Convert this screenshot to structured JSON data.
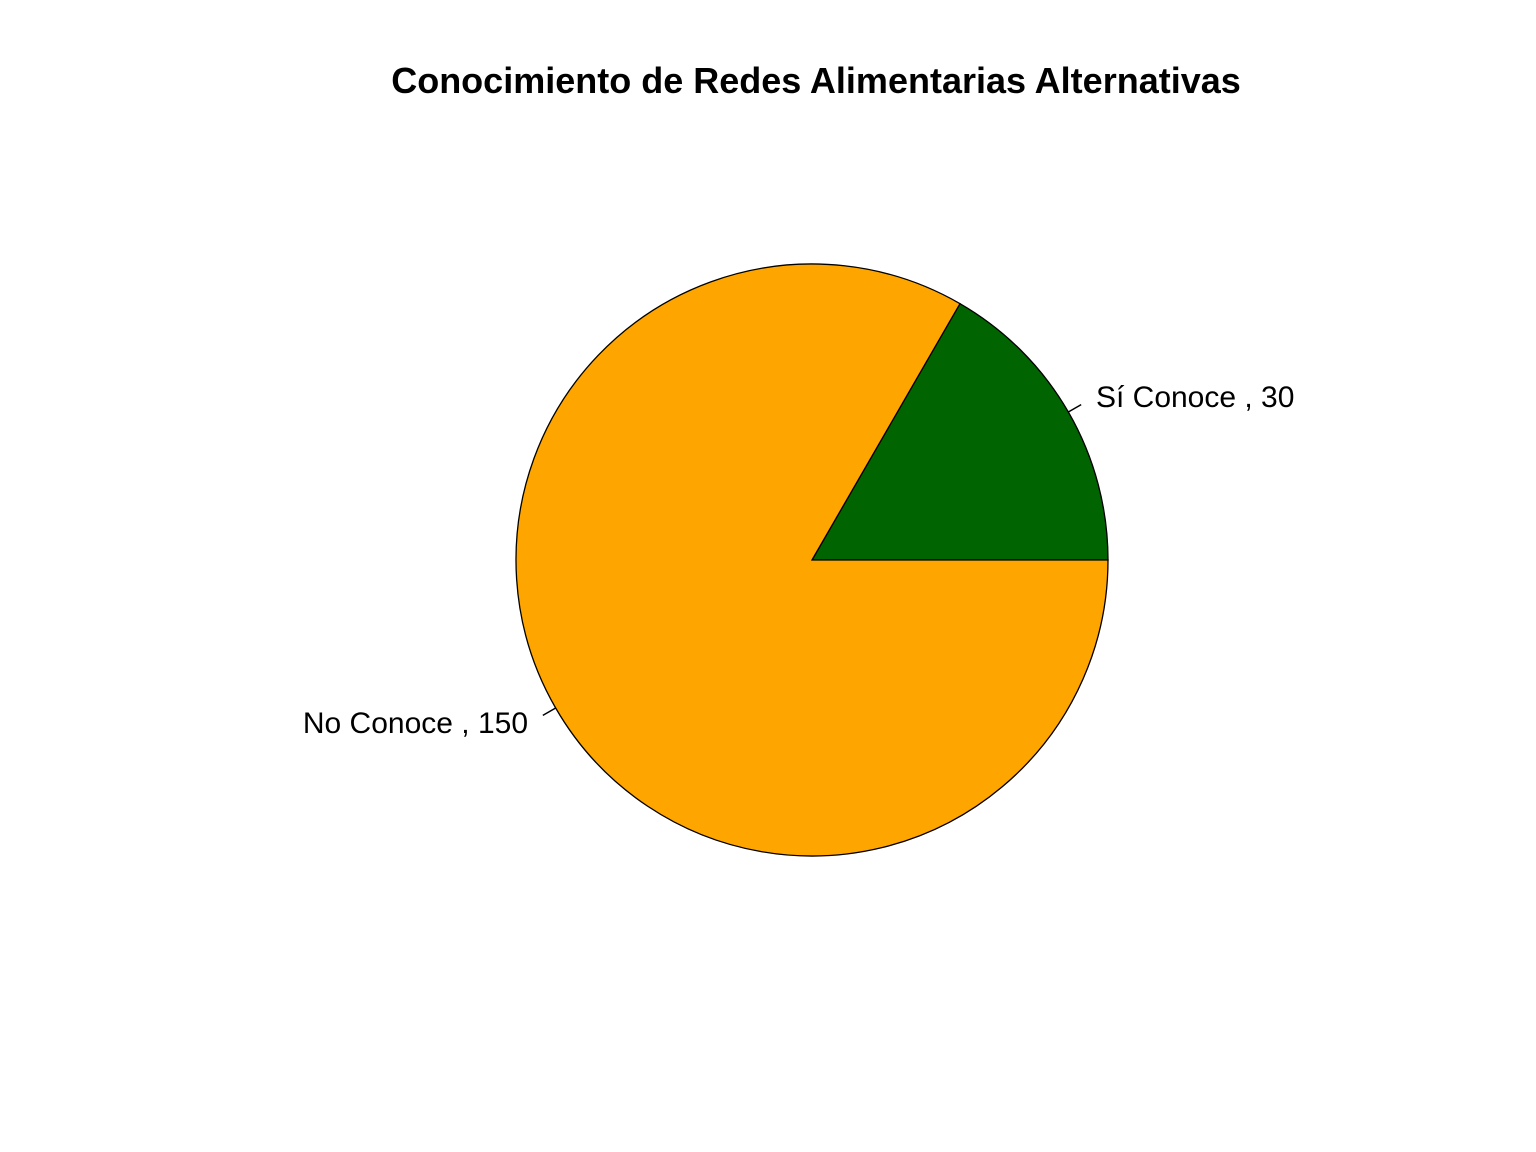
{
  "chart_data": {
    "type": "pie",
    "title": "Conocimiento de Redes Alimentarias Alternativas",
    "slices": [
      {
        "label": "Sí Conoce , 30",
        "category": "Sí Conoce",
        "value": 30,
        "color": "#006400"
      },
      {
        "label": "No Conoce , 150",
        "category": "No Conoce",
        "value": 150,
        "color": "#FFA500"
      }
    ],
    "start_angle_deg": 0,
    "direction": "counterclockwise",
    "border_color": "#000000",
    "legend": "none"
  }
}
